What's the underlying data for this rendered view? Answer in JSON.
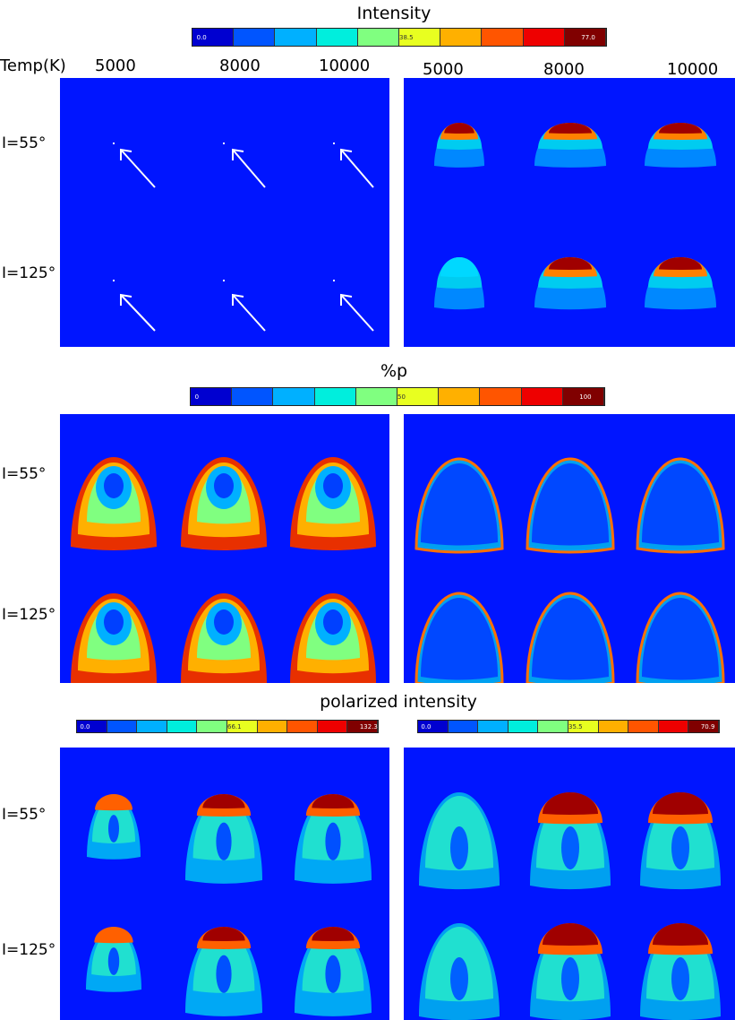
{
  "chart_data": {
    "type": "heatmap",
    "description_rows": [
      "I=55°",
      "I=125°"
    ],
    "temperatures_K": [
      5000,
      8000,
      10000
    ],
    "colormap": [
      "#0000d0",
      "#0055ff",
      "#00b0ff",
      "#00eedd",
      "#80ff80",
      "#e8ff20",
      "#ffb000",
      "#ff5500",
      "#ee0000",
      "#800000"
    ],
    "blocks": [
      {
        "title": "Intensity",
        "colorbar": {
          "ticks": [
            "0.0",
            "38.5",
            "77.0"
          ],
          "range": [
            0,
            77.0
          ]
        },
        "panels": [
          "left",
          "right"
        ]
      },
      {
        "title": "%p",
        "colorbar": {
          "ticks": [
            "0",
            "50",
            "100"
          ],
          "range": [
            0,
            100
          ]
        },
        "panels": [
          "left",
          "right"
        ]
      },
      {
        "title": "polarized intensity",
        "colorbars": [
          {
            "ticks": [
              "0.0",
              "66.1",
              "132.3"
            ],
            "range": [
              0,
              132.3
            ]
          },
          {
            "ticks": [
              "0.0",
              "35.5",
              "70.9"
            ],
            "range": [
              0,
              70.9
            ]
          }
        ],
        "panels": [
          "left",
          "right"
        ]
      }
    ]
  },
  "labels": {
    "temp_header": "Temp(K)",
    "temps_left": [
      "5000",
      "8000",
      "10000"
    ],
    "temps_right": [
      "5000",
      "8000",
      "10000"
    ],
    "row_55": "I=55°",
    "row_125": "I=125°"
  },
  "titles": {
    "intensity": "Intensity",
    "percent_p": "%p",
    "polarized": "polarized intensity"
  },
  "colorbars": {
    "intensity": [
      "0.0",
      "38.5",
      "77.0"
    ],
    "percent_p": [
      "0",
      "50",
      "100"
    ],
    "pol_left": [
      "0.0",
      "66.1",
      "132.3"
    ],
    "pol_right": [
      "0.0",
      "35.5",
      "70.9"
    ]
  },
  "colors": {
    "background": "#0015ff",
    "arrow": "#ffffff"
  }
}
